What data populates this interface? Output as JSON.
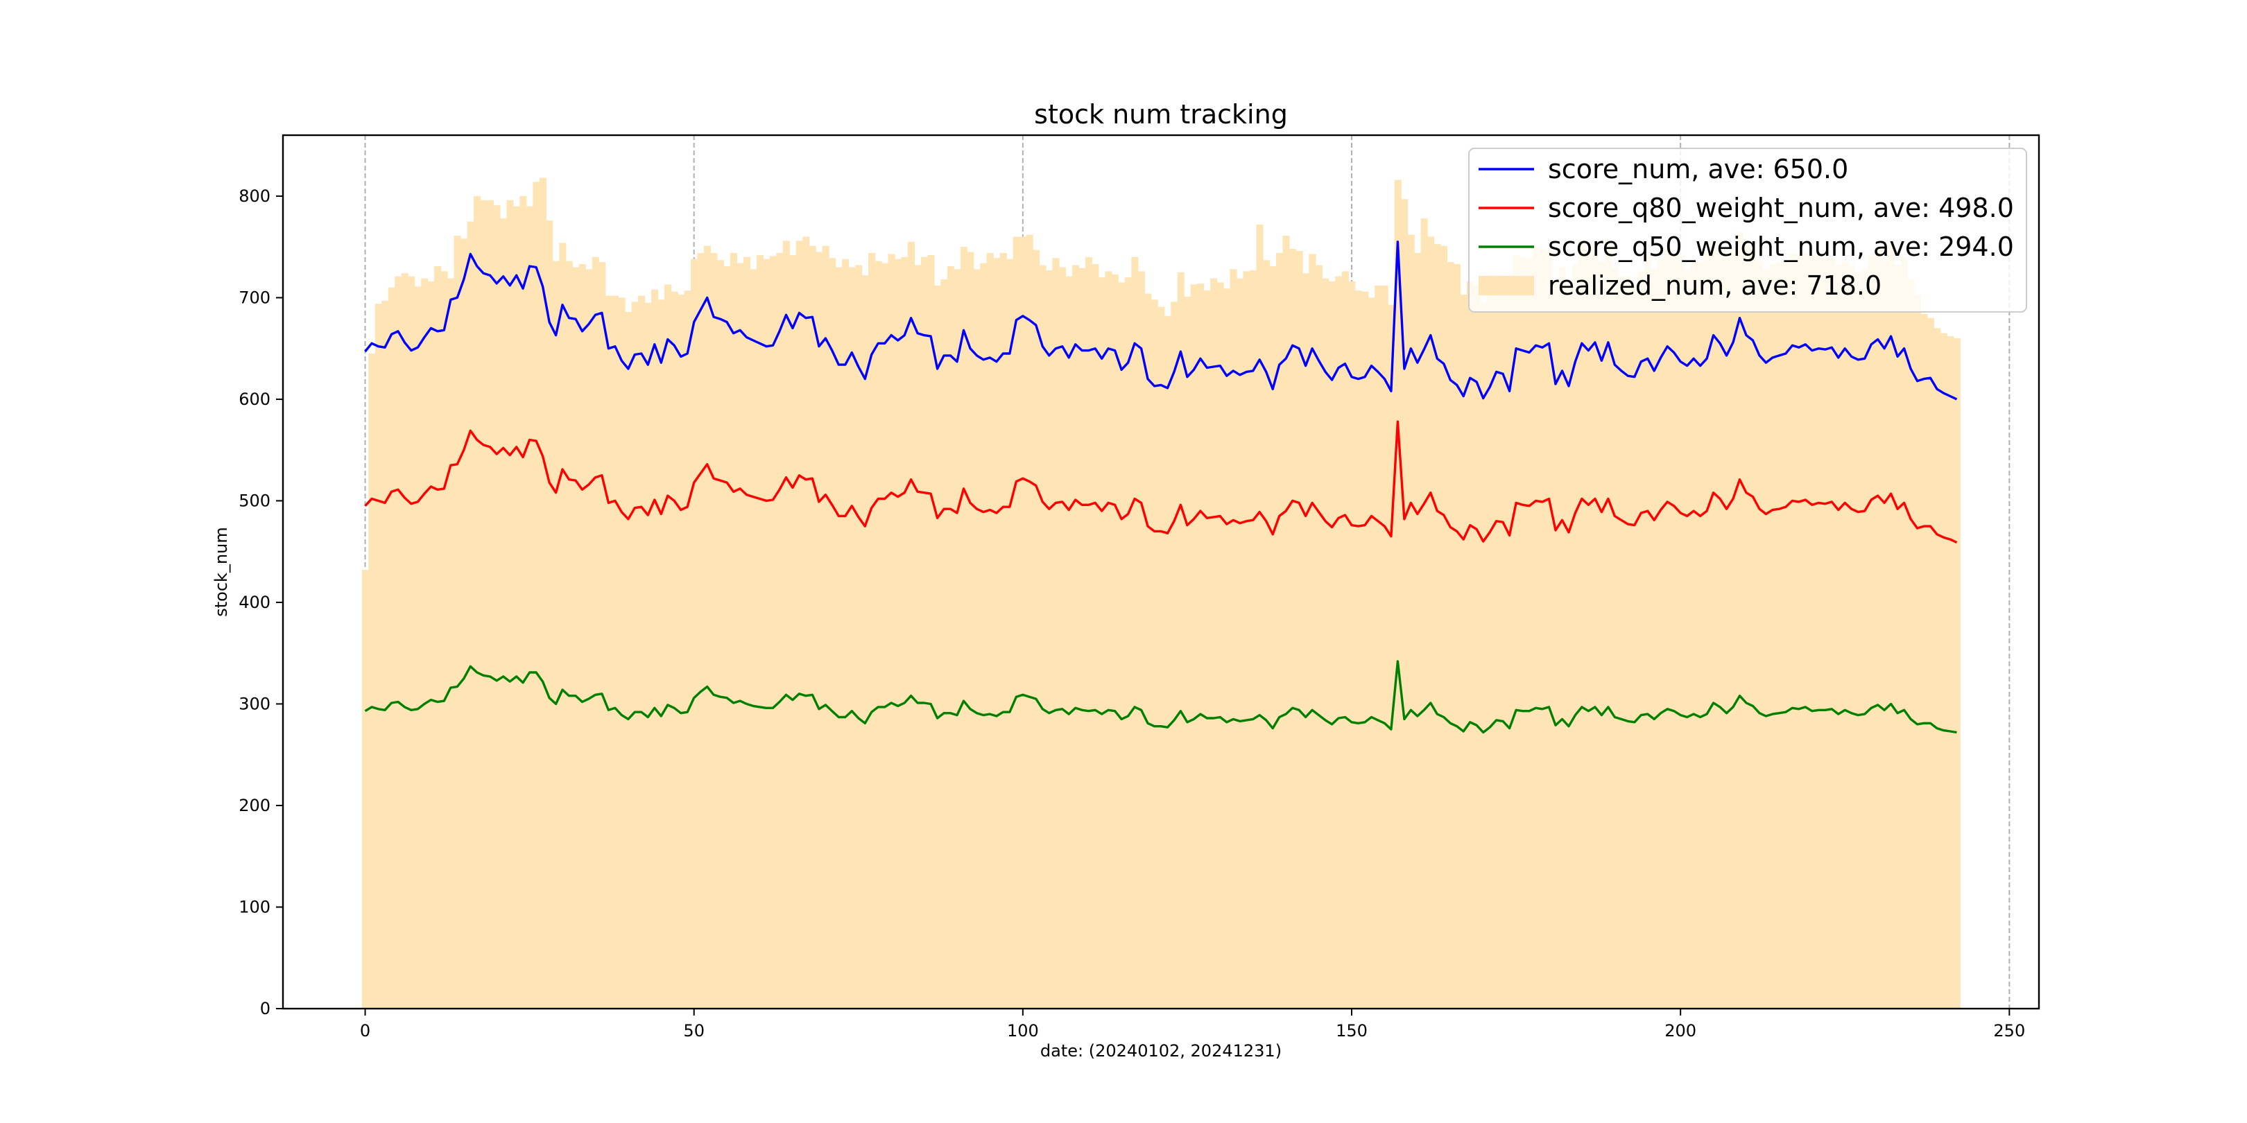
{
  "chart_data": {
    "type": "line",
    "title": "stock num tracking",
    "xlabel": "date: (20240102, 20241231)",
    "ylabel": "stock_num",
    "xlim": [
      -12.5,
      254.5
    ],
    "ylim": [
      0,
      860
    ],
    "xticks": [
      "0",
      "50",
      "100",
      "150",
      "200",
      "250"
    ],
    "yticks": [
      "0",
      "100",
      "200",
      "300",
      "400",
      "500",
      "600",
      "700",
      "800"
    ],
    "vertical_grid": true,
    "legend_position": "top-right",
    "colors": {
      "score_num": "#0000ff",
      "score_q80_weight_num": "#ff0000",
      "score_q50_weight_num": "#008000",
      "realized_num": "#ffe4b5"
    },
    "legend": [
      "score_num, ave: 650.0",
      "score_q80_weight_num, ave: 498.0",
      "score_q50_weight_num, ave: 294.0",
      "realized_num, ave: 718.0"
    ],
    "score_num_values": [
      647,
      655,
      652,
      651,
      664,
      667,
      656,
      648,
      651,
      661,
      670,
      667,
      668,
      698,
      700,
      718,
      743,
      731,
      724,
      722,
      714,
      721,
      712,
      722,
      709,
      731,
      730,
      711,
      676,
      663,
      693,
      680,
      679,
      667,
      674,
      683,
      685,
      650,
      652,
      638,
      630,
      644,
      645,
      634,
      654,
      636,
      659,
      653,
      642,
      645,
      676,
      688,
      700,
      681,
      679,
      676,
      665,
      668,
      661,
      658,
      655,
      652,
      653,
      667,
      683,
      670,
      685,
      680,
      681,
      652,
      660,
      648,
      634,
      634,
      646,
      632,
      620,
      644,
      655,
      655,
      663,
      658,
      663,
      680,
      665,
      663,
      662,
      630,
      643,
      643,
      637,
      668,
      650,
      643,
      639,
      641,
      637,
      645,
      645,
      678,
      682,
      678,
      673,
      652,
      643,
      650,
      652,
      641,
      654,
      648,
      648,
      650,
      640,
      650,
      648,
      629,
      636,
      655,
      650,
      620,
      613,
      614,
      611,
      627,
      647,
      622,
      629,
      640,
      631,
      632,
      633,
      623,
      628,
      624,
      627,
      628,
      639,
      627,
      610,
      634,
      640,
      653,
      650,
      633,
      650,
      638,
      627,
      619,
      631,
      635,
      622,
      620,
      622,
      633,
      627,
      620,
      608,
      755,
      630,
      650,
      636,
      649,
      663,
      640,
      635,
      619,
      614,
      603,
      621,
      617,
      601,
      612,
      627,
      625,
      608,
      650,
      648,
      646,
      653,
      651,
      655,
      615,
      628,
      613,
      637,
      655,
      648,
      656,
      638,
      656,
      634,
      628,
      623,
      622,
      637,
      640,
      628,
      641,
      652,
      646,
      637,
      633,
      640,
      633,
      640,
      663,
      655,
      643,
      656,
      680,
      663,
      658,
      643,
      636,
      641,
      643,
      645,
      653,
      651,
      654,
      648,
      650,
      649,
      651,
      641,
      650,
      642,
      639,
      640,
      654,
      659,
      650,
      662,
      642,
      650,
      630,
      618,
      620,
      621,
      610,
      606,
      603,
      600
    ],
    "score_q80_weight_num_values": [
      495,
      502,
      500,
      498,
      509,
      511,
      503,
      497,
      499,
      507,
      514,
      511,
      512,
      535,
      536,
      550,
      569,
      560,
      555,
      553,
      546,
      552,
      545,
      553,
      543,
      560,
      559,
      544,
      518,
      508,
      531,
      521,
      520,
      511,
      516,
      523,
      525,
      498,
      500,
      489,
      482,
      493,
      494,
      486,
      501,
      487,
      505,
      500,
      491,
      494,
      518,
      527,
      536,
      522,
      520,
      518,
      509,
      512,
      506,
      504,
      502,
      500,
      501,
      511,
      523,
      513,
      525,
      521,
      522,
      499,
      506,
      496,
      485,
      485,
      495,
      484,
      475,
      493,
      502,
      502,
      508,
      504,
      508,
      521,
      509,
      508,
      507,
      483,
      492,
      492,
      488,
      512,
      498,
      492,
      489,
      491,
      488,
      494,
      494,
      519,
      522,
      519,
      515,
      499,
      492,
      498,
      499,
      491,
      501,
      496,
      496,
      498,
      490,
      498,
      496,
      482,
      487,
      502,
      498,
      475,
      470,
      470,
      468,
      480,
      496,
      476,
      482,
      490,
      483,
      484,
      485,
      477,
      481,
      478,
      480,
      481,
      489,
      480,
      467,
      485,
      490,
      500,
      498,
      485,
      498,
      489,
      480,
      474,
      483,
      486,
      476,
      475,
      476,
      485,
      480,
      475,
      465,
      578,
      482,
      498,
      487,
      497,
      508,
      490,
      486,
      474,
      470,
      462,
      476,
      472,
      460,
      469,
      480,
      479,
      466,
      498,
      496,
      495,
      500,
      499,
      502,
      471,
      481,
      469,
      488,
      502,
      496,
      502,
      489,
      502,
      485,
      481,
      477,
      476,
      488,
      490,
      481,
      491,
      499,
      495,
      488,
      485,
      490,
      485,
      490,
      508,
      502,
      492,
      502,
      521,
      508,
      504,
      492,
      487,
      491,
      492,
      494,
      500,
      499,
      501,
      496,
      498,
      497,
      499,
      491,
      498,
      492,
      489,
      490,
      501,
      505,
      498,
      507,
      492,
      498,
      482,
      473,
      475,
      475,
      467,
      464,
      462,
      459
    ],
    "score_q50_weight_num_values": [
      293,
      297,
      295,
      294,
      301,
      302,
      297,
      294,
      295,
      300,
      304,
      302,
      303,
      316,
      317,
      325,
      337,
      331,
      328,
      327,
      323,
      327,
      322,
      327,
      321,
      331,
      331,
      322,
      306,
      300,
      314,
      308,
      308,
      302,
      305,
      309,
      310,
      294,
      296,
      289,
      285,
      292,
      292,
      287,
      296,
      288,
      299,
      296,
      291,
      292,
      306,
      312,
      317,
      309,
      307,
      306,
      301,
      303,
      300,
      298,
      297,
      296,
      296,
      302,
      309,
      304,
      310,
      308,
      309,
      295,
      299,
      293,
      287,
      287,
      293,
      286,
      281,
      292,
      297,
      297,
      301,
      298,
      301,
      308,
      301,
      301,
      300,
      286,
      291,
      291,
      289,
      303,
      295,
      291,
      289,
      290,
      288,
      292,
      292,
      307,
      309,
      307,
      305,
      295,
      291,
      294,
      295,
      290,
      296,
      294,
      293,
      294,
      290,
      294,
      293,
      285,
      288,
      297,
      294,
      281,
      278,
      278,
      277,
      284,
      293,
      282,
      285,
      290,
      286,
      286,
      287,
      282,
      285,
      283,
      284,
      285,
      289,
      284,
      276,
      287,
      290,
      296,
      294,
      287,
      294,
      289,
      284,
      280,
      286,
      287,
      282,
      281,
      282,
      287,
      284,
      281,
      275,
      342,
      285,
      294,
      288,
      294,
      301,
      290,
      287,
      281,
      278,
      273,
      282,
      279,
      272,
      277,
      284,
      283,
      276,
      294,
      293,
      293,
      296,
      295,
      297,
      279,
      285,
      278,
      289,
      297,
      293,
      297,
      289,
      297,
      287,
      285,
      283,
      282,
      289,
      290,
      285,
      291,
      295,
      293,
      289,
      287,
      290,
      287,
      290,
      301,
      297,
      291,
      297,
      308,
      301,
      298,
      291,
      288,
      290,
      291,
      292,
      296,
      295,
      297,
      293,
      294,
      294,
      295,
      290,
      294,
      291,
      289,
      290,
      296,
      299,
      294,
      300,
      291,
      294,
      285,
      280,
      281,
      281,
      276,
      274,
      273,
      272
    ],
    "realized_num_values": [
      432,
      645,
      694,
      697,
      710,
      721,
      724,
      721,
      711,
      719,
      716,
      731,
      726,
      719,
      761,
      758,
      775,
      800,
      796,
      796,
      791,
      778,
      796,
      790,
      800,
      790,
      814,
      818,
      776,
      736,
      754,
      736,
      730,
      733,
      728,
      740,
      735,
      702,
      702,
      700,
      686,
      696,
      702,
      695,
      708,
      698,
      713,
      706,
      703,
      707,
      738,
      744,
      751,
      744,
      737,
      731,
      744,
      734,
      740,
      728,
      742,
      738,
      741,
      744,
      756,
      742,
      756,
      760,
      751,
      745,
      751,
      739,
      730,
      738,
      730,
      732,
      722,
      744,
      736,
      734,
      743,
      738,
      740,
      755,
      732,
      740,
      742,
      712,
      718,
      731,
      728,
      750,
      745,
      728,
      734,
      744,
      739,
      744,
      738,
      760,
      760,
      762,
      747,
      732,
      727,
      739,
      730,
      721,
      732,
      729,
      740,
      733,
      720,
      726,
      723,
      715,
      720,
      740,
      726,
      704,
      698,
      691,
      682,
      696,
      725,
      701,
      713,
      714,
      707,
      719,
      715,
      709,
      728,
      719,
      726,
      727,
      772,
      737,
      731,
      744,
      761,
      748,
      746,
      724,
      743,
      732,
      719,
      716,
      721,
      726,
      716,
      707,
      706,
      700,
      712,
      712,
      693,
      816,
      797,
      762,
      744,
      778,
      760,
      753,
      751,
      735,
      733,
      703,
      716,
      712,
      695,
      706,
      722,
      721,
      706,
      742,
      740,
      739,
      750,
      748,
      746,
      715,
      730,
      713,
      733,
      756,
      746,
      755,
      735,
      757,
      730,
      721,
      721,
      714,
      726,
      741,
      728,
      738,
      750,
      744,
      741,
      727,
      736,
      735,
      745,
      756,
      751,
      739,
      748,
      765,
      752,
      750,
      736,
      728,
      733,
      735,
      735,
      743,
      744,
      744,
      742,
      741,
      738,
      739,
      732,
      736,
      732,
      725,
      728,
      741,
      750,
      737,
      753,
      732,
      740,
      718,
      703,
      684,
      680,
      670,
      665,
      662,
      660
    ]
  }
}
